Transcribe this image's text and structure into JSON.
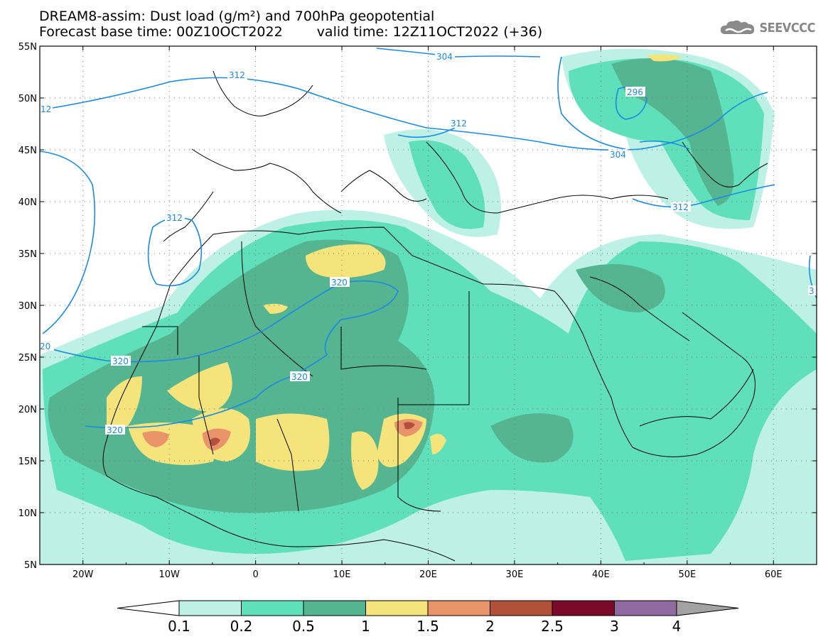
{
  "title": {
    "line1": "DREAM8-assim: Dust load (g/m²) and 700hPa geopotential",
    "base_time": "Forecast base time: 00Z10OCT2022",
    "valid_time": "valid time: 12Z11OCT2022 (+36)"
  },
  "logo": {
    "text": "SEEVCCC",
    "icon": "cloud-icon"
  },
  "map": {
    "lon_range": [
      -25,
      65
    ],
    "lat_range": [
      5,
      55
    ],
    "lat_ticks": [
      "5N",
      "10N",
      "15N",
      "20N",
      "25N",
      "30N",
      "35N",
      "40N",
      "45N",
      "50N",
      "55N"
    ],
    "lon_ticks": [
      "20W",
      "10W",
      "0",
      "10E",
      "20E",
      "30E",
      "40E",
      "50E",
      "60E"
    ],
    "contour_labels": [
      "312",
      "304",
      "296",
      "304",
      "312",
      "312",
      "312",
      "320",
      "20",
      "320",
      "320",
      "320",
      "3",
      "12"
    ]
  },
  "colorbar": {
    "levels": [
      "0.1",
      "0.2",
      "0.5",
      "1",
      "1.5",
      "2",
      "2.5",
      "3",
      "4"
    ],
    "colors": [
      "#ffffff",
      "#bdf1e6",
      "#5fe0bb",
      "#56b591",
      "#f5e47c",
      "#e9936a",
      "#b2503c",
      "#7b0a2a",
      "#8f6aa0",
      "#a2a2a2"
    ]
  }
}
